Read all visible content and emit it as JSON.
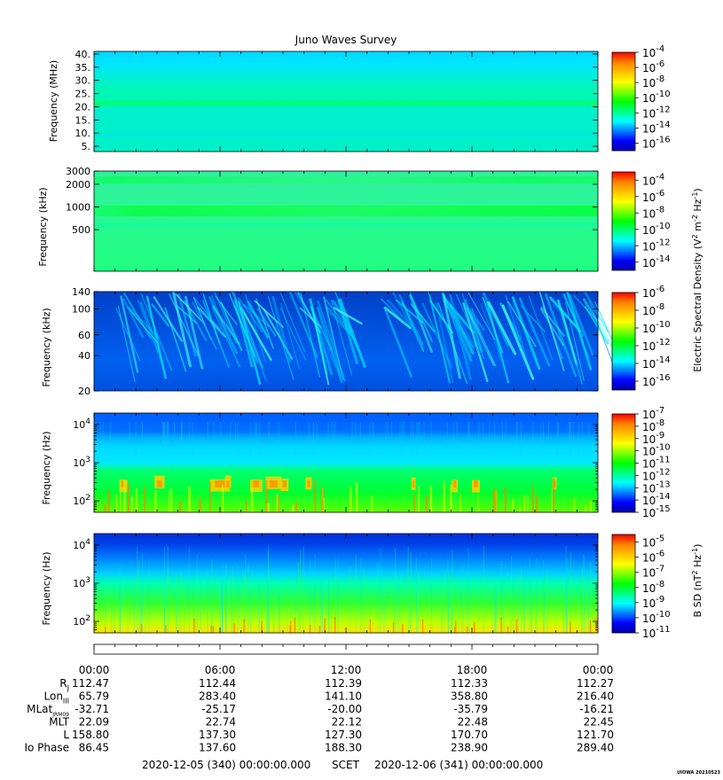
{
  "title": "Juno Waves Survey",
  "colors": {
    "colormap": [
      "#0000a8",
      "#0000ff",
      "#0080ff",
      "#00ffff",
      "#00ff80",
      "#00ff00",
      "#80ff00",
      "#ffff00",
      "#ffc000",
      "#ff8000",
      "#ff0000"
    ],
    "axis": "#000000",
    "background": "#ffffff"
  },
  "chart_data": [
    {
      "type": "heatmap",
      "panel": "high-frequency-receiver",
      "ylabel": "Frequency (MHz)",
      "y_ticks": [
        "40.",
        "35.",
        "30.",
        "25.",
        "20.",
        "15.",
        "10.",
        "5."
      ],
      "ylim": [
        3,
        41
      ],
      "yscale": "linear",
      "colorbar": {
        "scale": "log",
        "labels_base": "10",
        "exponents": [
          "-4",
          "-6",
          "-8",
          "-10",
          "-12",
          "-14",
          "-16"
        ],
        "range_exp": [
          -17,
          -4
        ]
      },
      "features": [
        {
          "description": "persistent enhanced band",
          "freq": 21
        }
      ]
    },
    {
      "type": "heatmap",
      "panel": "low-frequency-receiver-high",
      "ylabel": "Frequency (kHz)",
      "y_ticks": [
        "3000",
        "2000",
        "1000",
        "500"
      ],
      "ylim": [
        140,
        3000
      ],
      "yscale": "log",
      "colorbar": {
        "scale": "log",
        "labels_base": "10",
        "exponents": [
          "-4",
          "-6",
          "-8",
          "-10",
          "-12",
          "-14"
        ],
        "range_exp": [
          -15,
          -3
        ]
      },
      "features": [
        {
          "description": "enhanced emission band",
          "freq": 2300
        },
        {
          "description": "enhanced emission band",
          "freq": 850
        }
      ]
    },
    {
      "type": "heatmap",
      "panel": "low-frequency-receiver-low",
      "ylabel": "Frequency (kHz)",
      "y_ticks": [
        "140",
        "100",
        "60",
        "40",
        "20"
      ],
      "ylim": [
        20,
        140
      ],
      "yscale": "log",
      "colorbar": {
        "scale": "log",
        "labels_base": "10",
        "exponents": [
          "-6",
          "-8",
          "-10",
          "-12",
          "-14",
          "-16"
        ],
        "range_exp": [
          -17,
          -6
        ],
        "label": "Electric Spectral Density (V",
        "label_sup1": "2",
        "label_mid": " m",
        "label_sup2": "-2",
        "label_mid2": " Hz",
        "label_sup3": "-1",
        "label_end": ")"
      }
    },
    {
      "type": "heatmap",
      "panel": "electric-low-band",
      "ylabel": "Frequency (Hz)",
      "y_ticks_base": "10",
      "y_ticks_exp": [
        "4",
        "3",
        "2"
      ],
      "ylim": [
        50,
        20000
      ],
      "yscale": "log",
      "colorbar": {
        "scale": "log",
        "labels_base": "10",
        "exponents": [
          "-7",
          "-8",
          "-9",
          "-10",
          "-11",
          "-12",
          "-13",
          "-14",
          "-15"
        ],
        "range_exp": [
          -15,
          -7
        ]
      }
    },
    {
      "type": "heatmap",
      "panel": "magnetic-low-band",
      "ylabel": "Frequency (Hz)",
      "y_ticks_base": "10",
      "y_ticks_exp": [
        "4",
        "3",
        "2"
      ],
      "ylim": [
        50,
        20000
      ],
      "yscale": "log",
      "colorbar": {
        "scale": "log",
        "labels_base": "10",
        "exponents": [
          "-5",
          "-6",
          "-7",
          "-8",
          "-9",
          "-10",
          "-11"
        ],
        "range_exp": [
          -11,
          -4.5
        ],
        "label": "B SD (nT",
        "label_sup1": "2",
        "label_mid": " Hz",
        "label_sup2": "-1",
        "label_end": ")"
      }
    }
  ],
  "time_axis": {
    "ticks": [
      "00:00",
      "06:00",
      "12:00",
      "18:00",
      "00:00"
    ]
  },
  "ephemeris": {
    "rows": [
      {
        "label": "R",
        "sub": "J",
        "values": [
          "112.47",
          "112.44",
          "112.39",
          "112.33",
          "112.27"
        ]
      },
      {
        "label": "Lon",
        "sub": "III",
        "values": [
          "65.79",
          "283.40",
          "141.10",
          "358.80",
          "216.40"
        ]
      },
      {
        "label": "MLat",
        "sub": "JRM09",
        "values": [
          "-32.71",
          "-25.17",
          "-20.00",
          "-35.79",
          "-16.21"
        ]
      },
      {
        "label": "MLT",
        "sub": "",
        "values": [
          "22.09",
          "22.74",
          "22.12",
          "22.48",
          "22.45"
        ]
      },
      {
        "label": "L",
        "sub": "",
        "values": [
          "158.80",
          "137.30",
          "127.30",
          "170.70",
          "121.70"
        ]
      },
      {
        "label": "Io Phase",
        "sub": "",
        "values": [
          "86.45",
          "137.60",
          "188.30",
          "238.90",
          "289.40"
        ]
      }
    ]
  },
  "footer": {
    "start": "2020-12-05 (340) 00:00:00.000",
    "scet": "SCET",
    "end": "2020-12-06 (341) 00:00:00.000",
    "stamp": "UIOWA 20210523"
  }
}
